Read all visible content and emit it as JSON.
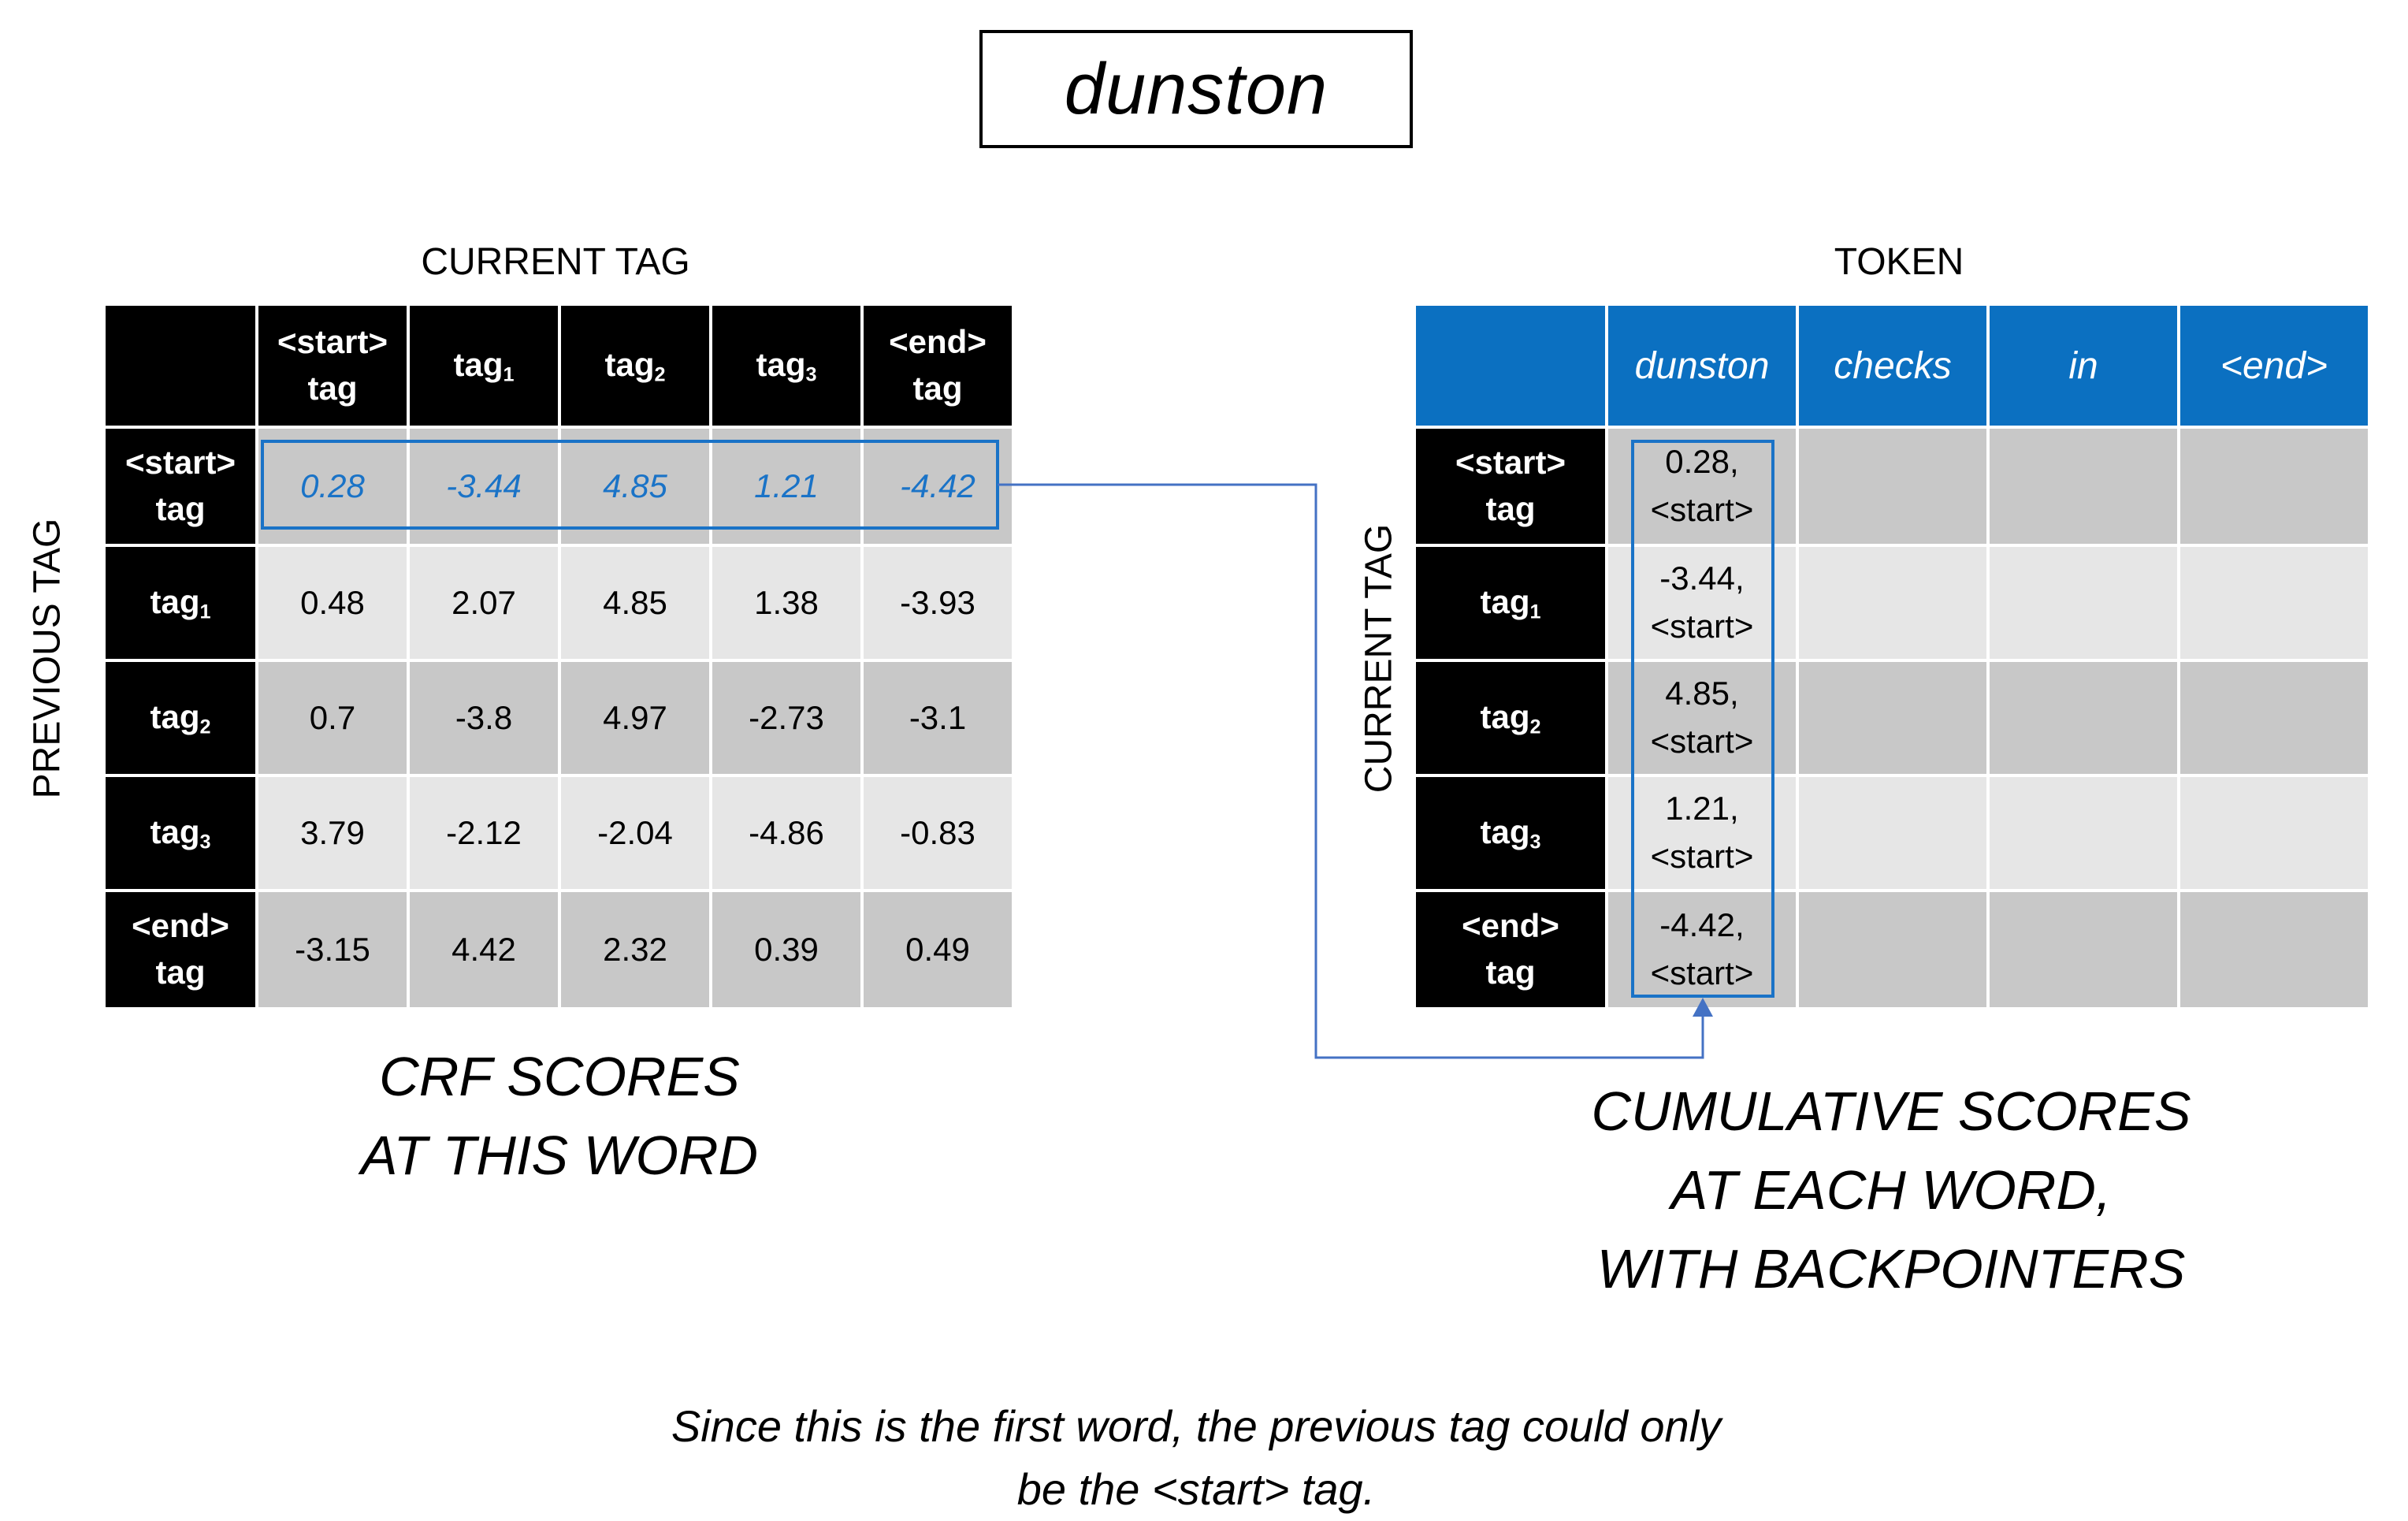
{
  "title": "dunston",
  "left_table": {
    "top_label": "CURRENT TAG",
    "side_label": "PREVIOUS TAG",
    "col_headers": [
      {
        "line1": "<start>",
        "line2": "tag"
      },
      {
        "base": "tag",
        "sub": "1"
      },
      {
        "base": "tag",
        "sub": "2"
      },
      {
        "base": "tag",
        "sub": "3"
      },
      {
        "line1": "<end>",
        "line2": "tag"
      }
    ],
    "rows": [
      {
        "header": {
          "line1": "<start>",
          "line2": "tag"
        },
        "values": [
          "0.28",
          "-3.44",
          "4.85",
          "1.21",
          "-4.42"
        ]
      },
      {
        "header": {
          "base": "tag",
          "sub": "1"
        },
        "values": [
          "0.48",
          "2.07",
          "4.85",
          "1.38",
          "-3.93"
        ]
      },
      {
        "header": {
          "base": "tag",
          "sub": "2"
        },
        "values": [
          "0.7",
          "-3.8",
          "4.97",
          "-2.73",
          "-3.1"
        ]
      },
      {
        "header": {
          "base": "tag",
          "sub": "3"
        },
        "values": [
          "3.79",
          "-2.12",
          "-2.04",
          "-4.86",
          "-0.83"
        ]
      },
      {
        "header": {
          "line1": "<end>",
          "line2": "tag"
        },
        "values": [
          "-3.15",
          "4.42",
          "2.32",
          "0.39",
          "0.49"
        ]
      }
    ],
    "caption": [
      "CRF SCORES",
      "AT THIS WORD"
    ]
  },
  "right_table": {
    "top_label": "TOKEN",
    "side_label": "CURRENT TAG",
    "tokens": [
      "dunston",
      "checks",
      "in",
      "<end>"
    ],
    "rows": [
      {
        "header": {
          "line1": "<start>",
          "line2": "tag"
        },
        "score": "0.28,",
        "backpointer": "<start>"
      },
      {
        "header": {
          "base": "tag",
          "sub": "1"
        },
        "score": "-3.44,",
        "backpointer": "<start>"
      },
      {
        "header": {
          "base": "tag",
          "sub": "2"
        },
        "score": "4.85,",
        "backpointer": "<start>"
      },
      {
        "header": {
          "base": "tag",
          "sub": "3"
        },
        "score": "1.21,",
        "backpointer": "<start>"
      },
      {
        "header": {
          "line1": "<end>",
          "line2": "tag"
        },
        "score": "-4.42,",
        "backpointer": "<start>"
      }
    ],
    "caption": [
      "CUMULATIVE SCORES",
      "AT EACH WORD,",
      "WITH BACKPOINTERS"
    ]
  },
  "note": [
    "Since this is the first word, the previous tag could only",
    "be the <start> tag."
  ],
  "colors": {
    "highlight": "#1a73c7",
    "token_header": "#0b70c1",
    "connector": "#4472c4"
  }
}
